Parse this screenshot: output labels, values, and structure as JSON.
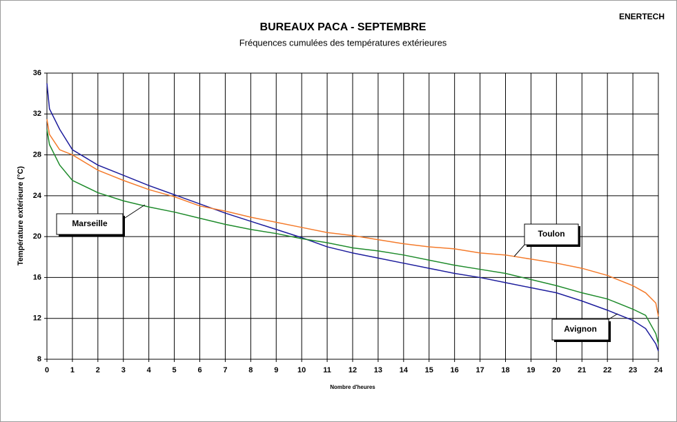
{
  "chart_data": {
    "type": "line",
    "title": "BUREAUX PACA - SEPTEMBRE",
    "subtitle": "Fréquences cumulées des températures extérieures",
    "annotation": "ENERTECH",
    "xlabel": "Nombre d'heures",
    "ylabel": "Température extérieure (°C)",
    "xlim": [
      0,
      24
    ],
    "ylim": [
      8,
      36
    ],
    "xticks": [
      0,
      1,
      2,
      3,
      4,
      5,
      6,
      7,
      8,
      9,
      10,
      11,
      12,
      13,
      14,
      15,
      16,
      17,
      18,
      19,
      20,
      21,
      22,
      23,
      24
    ],
    "yticks": [
      8,
      12,
      16,
      20,
      24,
      28,
      32,
      36
    ],
    "grid": true,
    "x": [
      0,
      0.1,
      0.5,
      1,
      2,
      3,
      4,
      5,
      6,
      7,
      8,
      9,
      10,
      11,
      12,
      13,
      14,
      15,
      16,
      17,
      18,
      19,
      20,
      21,
      22,
      23,
      23.5,
      23.9,
      24
    ],
    "series": [
      {
        "name": "Avignon",
        "color": "#1c1c9c",
        "values": [
          35,
          32.5,
          30.5,
          28.5,
          27,
          26,
          25,
          24.1,
          23.2,
          22.3,
          21.5,
          20.7,
          19.9,
          19,
          18.4,
          17.9,
          17.4,
          16.9,
          16.4,
          16,
          15.5,
          15,
          14.5,
          13.7,
          12.8,
          11.8,
          11,
          9.5,
          8.8
        ]
      },
      {
        "name": "Toulon",
        "color": "#f47a2a",
        "values": [
          31.5,
          30,
          28.5,
          28,
          26.5,
          25.5,
          24.6,
          23.9,
          23,
          22.5,
          21.9,
          21.4,
          20.9,
          20.4,
          20.1,
          19.7,
          19.3,
          19,
          18.8,
          18.4,
          18.2,
          17.8,
          17.4,
          16.9,
          16.2,
          15.2,
          14.5,
          13.5,
          12.2
        ]
      },
      {
        "name": "Marseille",
        "color": "#1d8a2a",
        "values": [
          30.5,
          29,
          27,
          25.5,
          24.3,
          23.5,
          22.9,
          22.4,
          21.8,
          21.2,
          20.7,
          20.3,
          19.8,
          19.4,
          18.9,
          18.6,
          18.2,
          17.7,
          17.2,
          16.8,
          16.4,
          15.8,
          15.2,
          14.5,
          13.9,
          12.9,
          12.3,
          10.5,
          9.5
        ]
      }
    ]
  }
}
